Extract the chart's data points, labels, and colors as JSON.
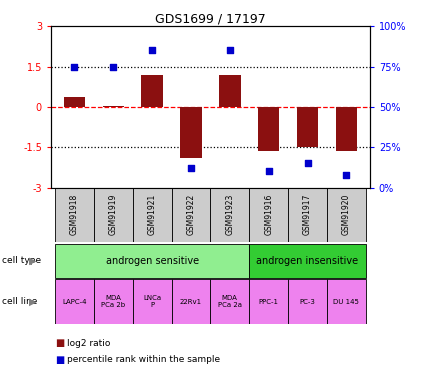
{
  "title": "GDS1699 / 17197",
  "samples": [
    "GSM91918",
    "GSM91919",
    "GSM91921",
    "GSM91922",
    "GSM91923",
    "GSM91916",
    "GSM91917",
    "GSM91920"
  ],
  "log2_ratio": [
    0.35,
    0.05,
    1.2,
    -1.9,
    1.2,
    -1.65,
    -1.5,
    -1.65
  ],
  "percentile_rank": [
    75,
    75,
    85,
    12,
    85,
    10,
    15,
    8
  ],
  "cell_type_groups": [
    {
      "label": "androgen sensitive",
      "start": 0,
      "end": 5,
      "color": "#90EE90"
    },
    {
      "label": "androgen insensitive",
      "start": 5,
      "end": 8,
      "color": "#33CC33"
    }
  ],
  "cell_lines": [
    "LAPC-4",
    "MDA\nPCa 2b",
    "LNCa\nP",
    "22Rv1",
    "MDA\nPCa 2a",
    "PPC-1",
    "PC-3",
    "DU 145"
  ],
  "cell_line_color": "#EE82EE",
  "sample_box_color": "#CCCCCC",
  "bar_color": "#8B1010",
  "dot_color": "#0000CC",
  "ylim_left": [
    -3,
    3
  ],
  "ylim_right": [
    0,
    100
  ],
  "yticks_left": [
    -3,
    -1.5,
    0,
    1.5,
    3
  ],
  "yticks_right": [
    0,
    25,
    50,
    75,
    100
  ],
  "ytick_labels_left": [
    "-3",
    "-1.5",
    "0",
    "1.5",
    "3"
  ],
  "ytick_labels_right": [
    "0%",
    "25%",
    "50%",
    "75%",
    "100%"
  ],
  "hlines": [
    0,
    1.5,
    -1.5
  ],
  "hline_styles": [
    "dashed",
    "dotted",
    "dotted"
  ],
  "hline_colors": [
    "red",
    "black",
    "black"
  ]
}
